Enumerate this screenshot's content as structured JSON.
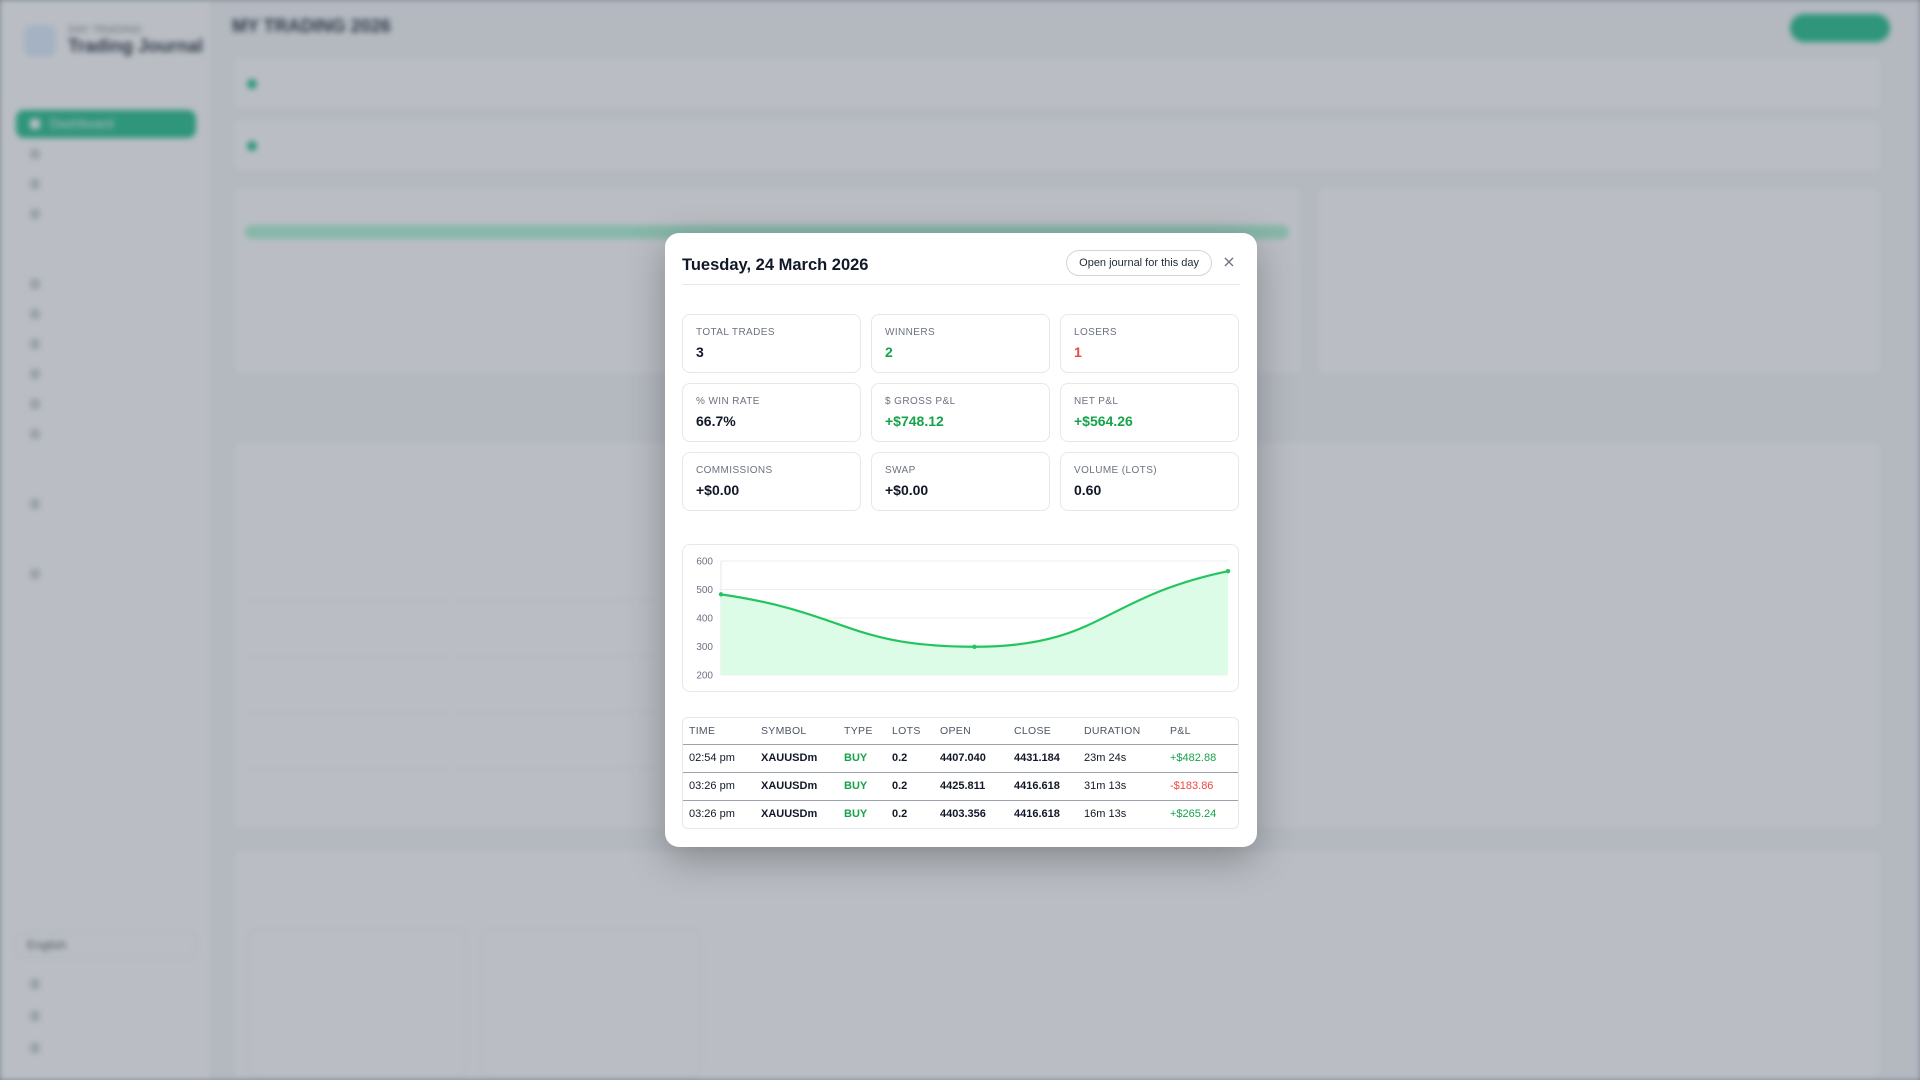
{
  "background": {
    "brand_sub": "DAY TRADING",
    "brand_name": "Trading Journal",
    "page_title": "MY TRADING 2026",
    "nav_active": "Dashboard",
    "language": "English"
  },
  "modal": {
    "title": "Tuesday, 24 March 2026",
    "open_journal_label": "Open journal for this day",
    "close_glyph": "×",
    "stats": [
      {
        "label": "TOTAL TRADES",
        "value": "3",
        "tone": "neutral"
      },
      {
        "label": "WINNERS",
        "value": "2",
        "tone": "green"
      },
      {
        "label": "LOSERS",
        "value": "1",
        "tone": "red"
      },
      {
        "label": "% WIN RATE",
        "value": "66.7%",
        "tone": "neutral"
      },
      {
        "label": "$ GROSS P&L",
        "value": "+$748.12",
        "tone": "green"
      },
      {
        "label": "NET P&L",
        "value": "+$564.26",
        "tone": "green"
      },
      {
        "label": "COMMISSIONS",
        "value": "+$0.00",
        "tone": "neutral"
      },
      {
        "label": "SWAP",
        "value": "+$0.00",
        "tone": "neutral"
      },
      {
        "label": "VOLUME (LOTS)",
        "value": "0.60",
        "tone": "neutral"
      }
    ],
    "table": {
      "headers": [
        "TIME",
        "SYMBOL",
        "TYPE",
        "LOTS",
        "OPEN",
        "CLOSE",
        "DURATION",
        "P&L"
      ],
      "rows": [
        {
          "time": "02:54 pm",
          "symbol": "XAUUSDm",
          "type": "BUY",
          "lots": "0.2",
          "open": "4407.040",
          "close": "4431.184",
          "duration": "23m 24s",
          "pnl": "+$482.88",
          "tone": "pos"
        },
        {
          "time": "03:26 pm",
          "symbol": "XAUUSDm",
          "type": "BUY",
          "lots": "0.2",
          "open": "4425.811",
          "close": "4416.618",
          "duration": "31m 13s",
          "pnl": "-$183.86",
          "tone": "neg"
        },
        {
          "time": "03:26 pm",
          "symbol": "XAUUSDm",
          "type": "BUY",
          "lots": "0.2",
          "open": "4403.356",
          "close": "4416.618",
          "duration": "16m 13s",
          "pnl": "+$265.24",
          "tone": "pos"
        }
      ]
    }
  },
  "chart_data": {
    "type": "area",
    "x": [
      0,
      1,
      2
    ],
    "values": [
      482.88,
      299.02,
      564.26
    ],
    "ylim": [
      200,
      600
    ],
    "yticks": [
      200,
      300,
      400,
      500,
      600
    ],
    "grid": true,
    "color": "#22c55e",
    "fill": "#dcfce7"
  },
  "colors": {
    "accent": "#10b981",
    "positive": "#16a34a",
    "negative": "#ef4444"
  }
}
